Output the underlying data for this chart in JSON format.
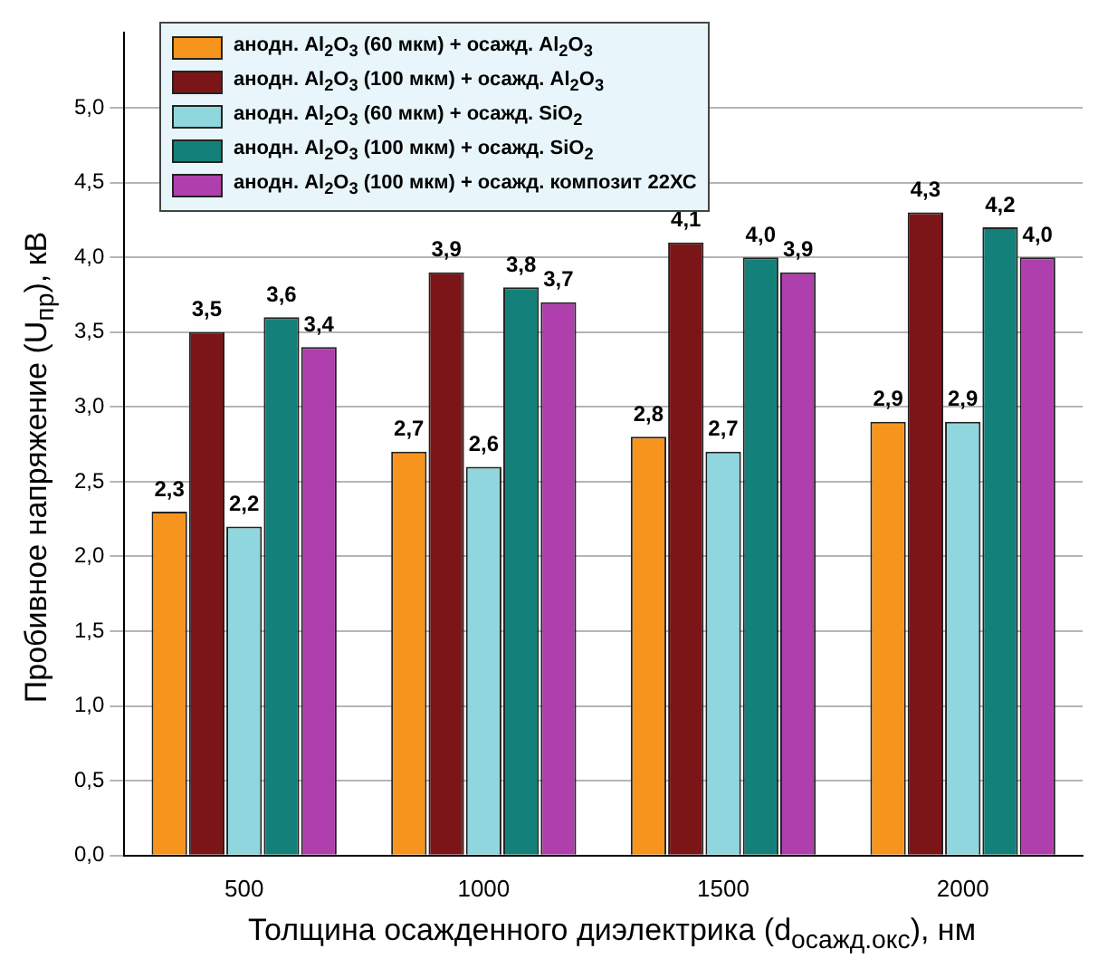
{
  "chart_data": {
    "type": "bar",
    "xlabel": "Толщина осажденного диэлектрика (d$_{осажд.окс}$), нм",
    "ylabel": "Пробивное напряжение (U$_{пр}$), кВ",
    "categories": [
      "500",
      "1000",
      "1500",
      "2000"
    ],
    "series": [
      {
        "name": "анодн. Al$_{2}$O$_{3}$ (60 мкм) + осажд. Al$_{2}$O$_{3}$",
        "color": "#f7941d",
        "values": [
          2.3,
          2.7,
          2.8,
          2.9
        ],
        "value_labels": [
          "2,3",
          "2,7",
          "2,8",
          "2,9"
        ]
      },
      {
        "name": "анодн. Al$_{2}$O$_{3}$ (100 мкм) + осажд. Al$_{2}$O$_{3}$",
        "color": "#7b1518",
        "values": [
          3.5,
          3.9,
          4.1,
          4.3
        ],
        "value_labels": [
          "3,5",
          "3,9",
          "4,1",
          "4,3"
        ]
      },
      {
        "name": "анодн. Al$_{2}$O$_{3}$ (60 мкм) + осажд. SiO$_{2}$",
        "color": "#8fd6de",
        "values": [
          2.2,
          2.6,
          2.7,
          2.9
        ],
        "value_labels": [
          "2,2",
          "2,6",
          "2,7",
          "2,9"
        ]
      },
      {
        "name": "анодн. Al$_{2}$O$_{3}$ (100 мкм) + осажд. SiO$_{2}$",
        "color": "#14807a",
        "values": [
          3.6,
          3.8,
          4.0,
          4.2
        ],
        "value_labels": [
          "3,6",
          "3,8",
          "4,0",
          "4,2"
        ]
      },
      {
        "name": "анодн. Al$_{2}$O$_{3}$ (100 мкм) + осажд. композит 22ХС",
        "color": "#b03fae",
        "values": [
          3.4,
          3.7,
          3.9,
          4.0
        ],
        "value_labels": [
          "3,4",
          "3,7",
          "3,9",
          "4,0"
        ]
      }
    ],
    "ylim": [
      0,
      5.5
    ],
    "yticks": [
      {
        "value": 0,
        "label": "0,0"
      },
      {
        "value": 0.5,
        "label": "0,5"
      },
      {
        "value": 1,
        "label": "1,0"
      },
      {
        "value": 1.5,
        "label": "1,5"
      },
      {
        "value": 2,
        "label": "2,0"
      },
      {
        "value": 2.5,
        "label": "2,5"
      },
      {
        "value": 3,
        "label": "3,0"
      },
      {
        "value": 3.5,
        "label": "3,5"
      },
      {
        "value": 4,
        "label": "4,0"
      },
      {
        "value": 4.5,
        "label": "4,5"
      },
      {
        "value": 5,
        "label": "5,0"
      }
    ],
    "grid": "y",
    "legend": "top left"
  }
}
